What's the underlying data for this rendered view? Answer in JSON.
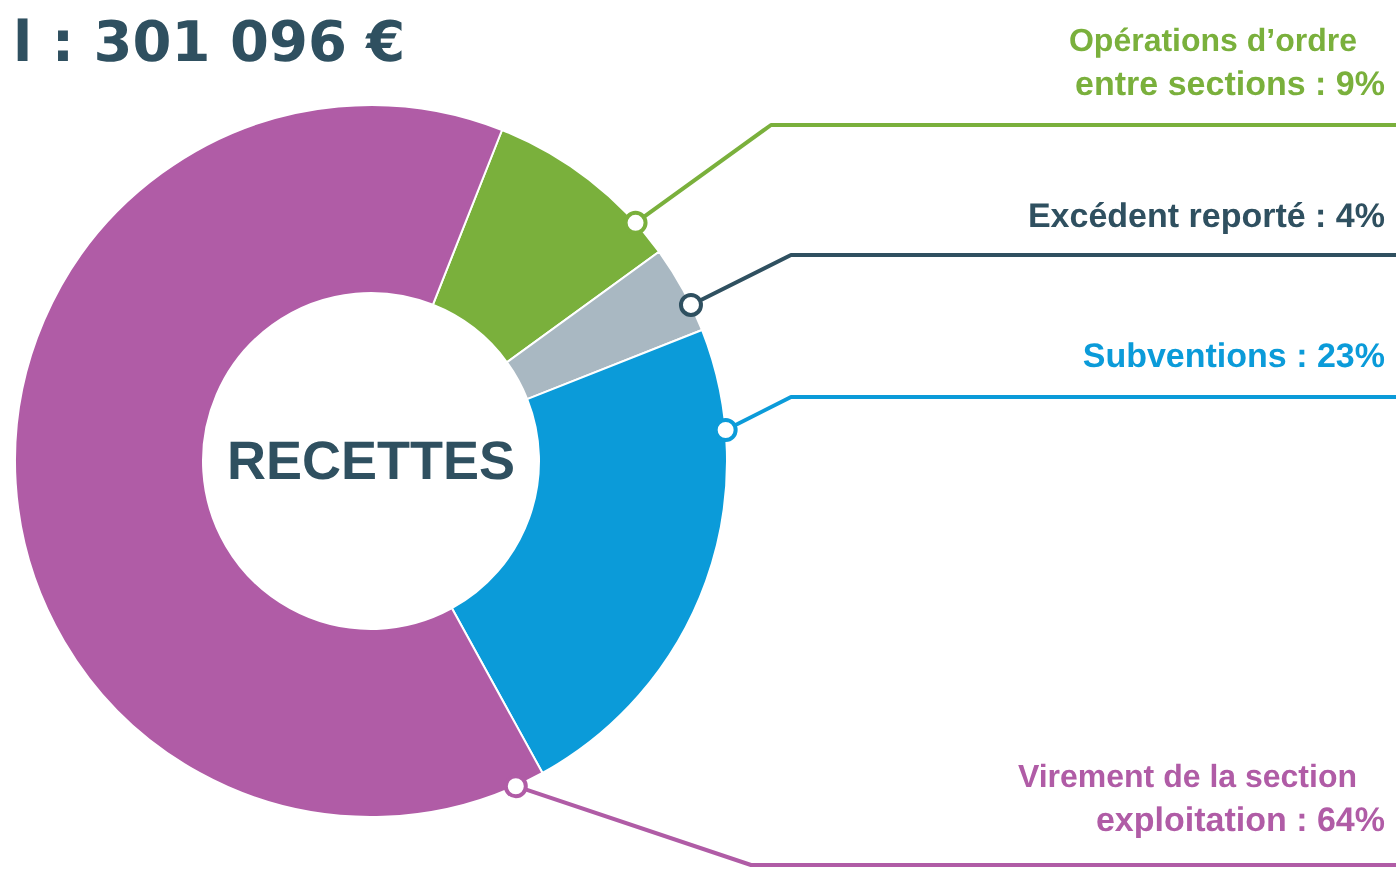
{
  "chart_data": {
    "type": "donut",
    "title": "l : 301 096 €",
    "categories": [
      "Opérations d’ordre\nentre sections",
      "Excédent reporté",
      "Subventions",
      "Virement de la section\nexploitation"
    ],
    "values": [
      9,
      4,
      23,
      64
    ],
    "colors": [
      "#7ab03c",
      "#a9b8c2",
      "#0b9bd9",
      "#b05ca6"
    ],
    "value_labels": [
      "9%",
      "4%",
      "23%",
      "64%"
    ],
    "annotations": [
      "RECETTES"
    ]
  }
}
